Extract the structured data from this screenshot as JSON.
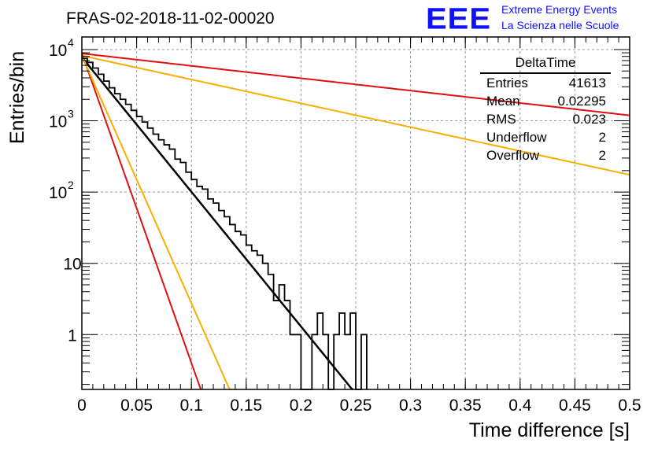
{
  "header": {
    "title": "FRAS-02-2018-11-02-00020",
    "logo_text": "EEE",
    "logo_line1": "Extreme Energy Events",
    "logo_line2": "La Scienza nelle Scuole"
  },
  "stats_box": {
    "title": "DeltaTime",
    "rows": [
      {
        "label": "Entries",
        "value": "41613"
      },
      {
        "label": "Mean",
        "value": "0.02295"
      },
      {
        "label": "RMS",
        "value": "0.023"
      },
      {
        "label": "Underflow",
        "value": "2"
      },
      {
        "label": "Overflow",
        "value": "2"
      }
    ]
  },
  "chart_data": {
    "type": "histogram",
    "xlabel": "Time difference [s]",
    "ylabel": "Entries/bin",
    "x_range": [
      0,
      0.5
    ],
    "y_range": [
      0.17,
      15000
    ],
    "y_scale": "log",
    "grid": true,
    "x_ticks": [
      "0",
      "0.05",
      "0.1",
      "0.15",
      "0.2",
      "0.25",
      "0.3",
      "0.35",
      "0.4",
      "0.45",
      "0.5"
    ],
    "y_ticks": [
      {
        "value": 10000,
        "label": "10",
        "exp": "4"
      },
      {
        "value": 1000,
        "label": "10",
        "exp": "3"
      },
      {
        "value": 100,
        "label": "10",
        "exp": "2"
      },
      {
        "value": 10,
        "label": "10",
        "exp": ""
      },
      {
        "value": 1,
        "label": "1",
        "exp": ""
      }
    ],
    "histogram": {
      "bin_width": 0.005,
      "color": "#000000",
      "bins": [
        [
          0.0,
          7500
        ],
        [
          0.005,
          6600
        ],
        [
          0.01,
          5500
        ],
        [
          0.015,
          4500
        ],
        [
          0.02,
          3600
        ],
        [
          0.025,
          2900
        ],
        [
          0.03,
          2400
        ],
        [
          0.035,
          2000
        ],
        [
          0.04,
          1700
        ],
        [
          0.045,
          1400
        ],
        [
          0.05,
          1150
        ],
        [
          0.055,
          960
        ],
        [
          0.06,
          790
        ],
        [
          0.065,
          650
        ],
        [
          0.07,
          540
        ],
        [
          0.075,
          460
        ],
        [
          0.08,
          400
        ],
        [
          0.085,
          290
        ],
        [
          0.09,
          260
        ],
        [
          0.095,
          190
        ],
        [
          0.1,
          150
        ],
        [
          0.105,
          120
        ],
        [
          0.11,
          110
        ],
        [
          0.115,
          80
        ],
        [
          0.12,
          70
        ],
        [
          0.125,
          55
        ],
        [
          0.13,
          45
        ],
        [
          0.135,
          35
        ],
        [
          0.14,
          28
        ],
        [
          0.145,
          25
        ],
        [
          0.15,
          18
        ],
        [
          0.155,
          15
        ],
        [
          0.16,
          13
        ],
        [
          0.165,
          10
        ],
        [
          0.17,
          7
        ],
        [
          0.175,
          3
        ],
        [
          0.18,
          5
        ],
        [
          0.185,
          3
        ],
        [
          0.19,
          1
        ],
        [
          0.195,
          1
        ],
        [
          0.2,
          0
        ],
        [
          0.205,
          0
        ],
        [
          0.21,
          1
        ],
        [
          0.215,
          2
        ],
        [
          0.22,
          1
        ],
        [
          0.225,
          0
        ],
        [
          0.23,
          1
        ],
        [
          0.235,
          2
        ],
        [
          0.24,
          1
        ],
        [
          0.245,
          2
        ],
        [
          0.25,
          0
        ],
        [
          0.255,
          1
        ]
      ]
    },
    "fits": [
      {
        "color": "#000000",
        "amplitude": 7800,
        "decay": 43.5,
        "x_start": 0.0,
        "x_end": 0.25
      },
      {
        "color": "#e01010",
        "amplitude": 8800,
        "decay": 4.0,
        "x_start": 0.0,
        "x_end": 0.5
      },
      {
        "color": "#f5b000",
        "amplitude": 8200,
        "decay": 7.7,
        "x_start": 0.0,
        "x_end": 0.5
      },
      {
        "color": "#e01010",
        "amplitude": 8800,
        "decay": 100,
        "x_start": 0.0,
        "x_end": 0.115
      },
      {
        "color": "#f5b000",
        "amplitude": 8200,
        "decay": 80,
        "x_start": 0.0,
        "x_end": 0.14
      }
    ]
  }
}
